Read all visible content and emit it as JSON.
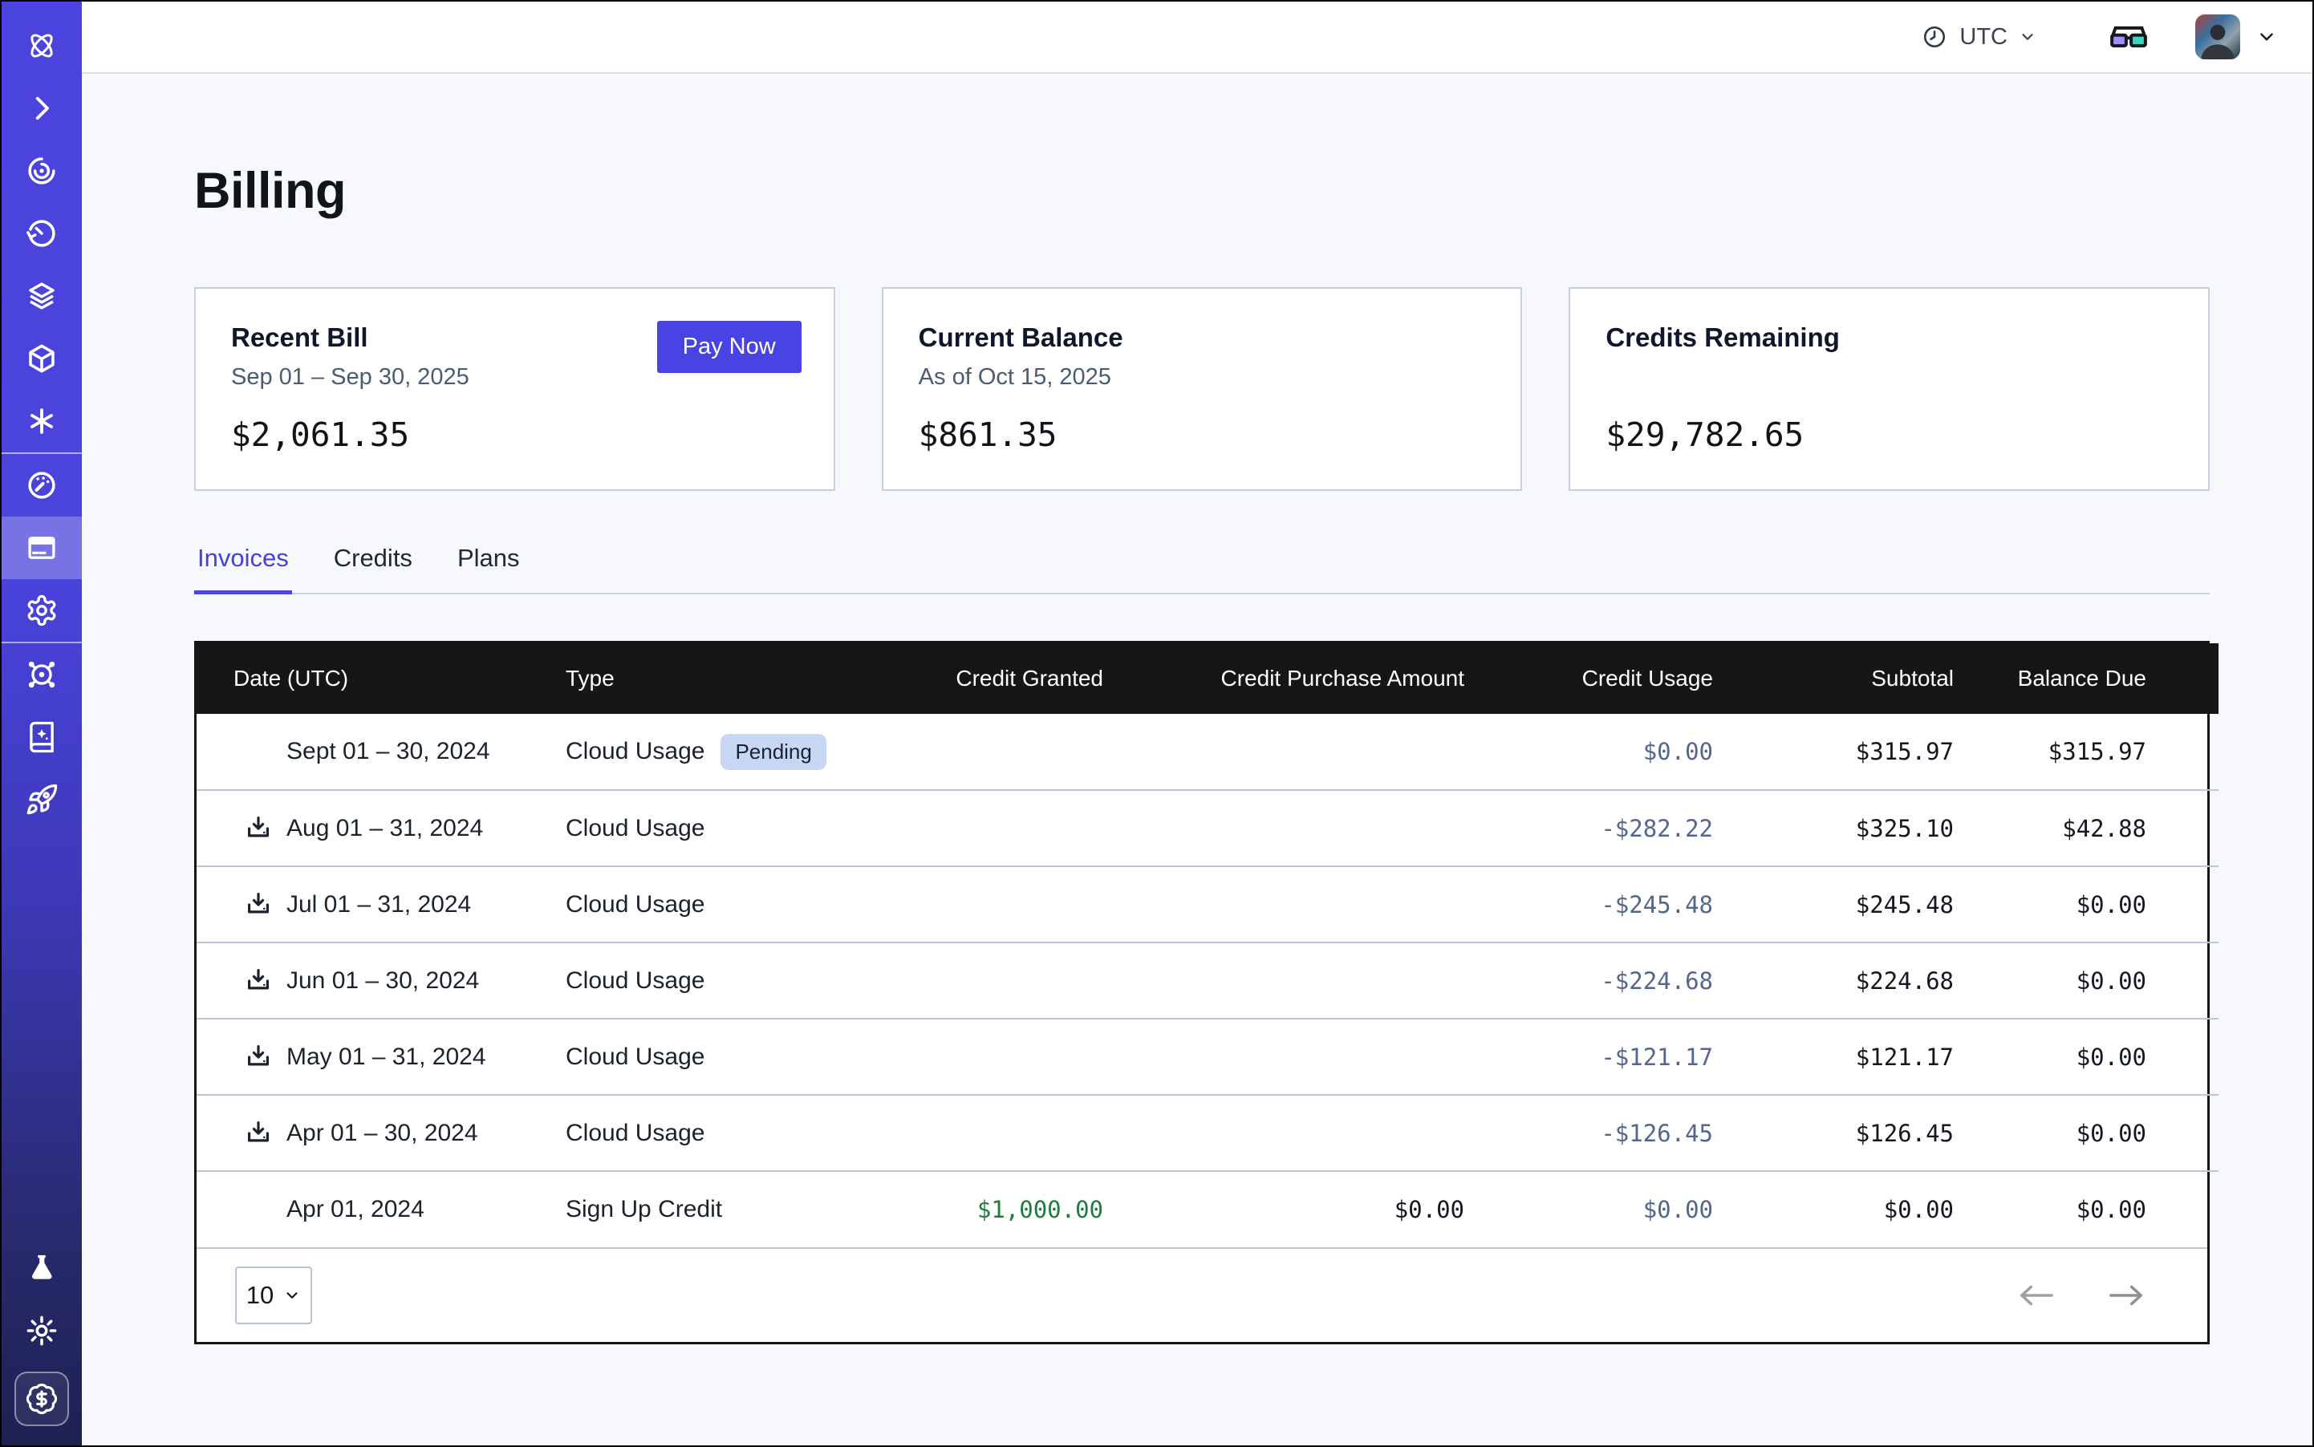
{
  "topbar": {
    "timezone": "UTC"
  },
  "page": {
    "title": "Billing"
  },
  "cards": {
    "recent_bill": {
      "title": "Recent Bill",
      "period": "Sep 01 – Sep 30, 2025",
      "amount": "$2,061.35",
      "pay_now_label": "Pay Now"
    },
    "current_balance": {
      "title": "Current Balance",
      "as_of": "As of Oct 15, 2025",
      "amount": "$861.35"
    },
    "credits_remaining": {
      "title": "Credits Remaining",
      "amount": "$29,782.65"
    }
  },
  "tabs": [
    {
      "label": "Invoices",
      "active": true
    },
    {
      "label": "Credits",
      "active": false
    },
    {
      "label": "Plans",
      "active": false
    }
  ],
  "table": {
    "columns": [
      "Date (UTC)",
      "Type",
      "Credit Granted",
      "Credit Purchase Amount",
      "Credit Usage",
      "Subtotal",
      "Balance Due"
    ],
    "rows": [
      {
        "date": "Sept 01 – 30, 2024",
        "download": false,
        "type": "Cloud Usage",
        "badge": "Pending",
        "credit_granted": "",
        "credit_purchase": "",
        "credit_usage": "$0.00",
        "subtotal": "$315.97",
        "balance_due": "$315.97"
      },
      {
        "date": "Aug 01 – 31, 2024",
        "download": true,
        "type": "Cloud Usage",
        "badge": "",
        "credit_granted": "",
        "credit_purchase": "",
        "credit_usage": "-$282.22",
        "subtotal": "$325.10",
        "balance_due": "$42.88"
      },
      {
        "date": "Jul 01 – 31, 2024",
        "download": true,
        "type": "Cloud Usage",
        "badge": "",
        "credit_granted": "",
        "credit_purchase": "",
        "credit_usage": "-$245.48",
        "subtotal": "$245.48",
        "balance_due": "$0.00"
      },
      {
        "date": "Jun 01 – 30, 2024",
        "download": true,
        "type": "Cloud Usage",
        "badge": "",
        "credit_granted": "",
        "credit_purchase": "",
        "credit_usage": "-$224.68",
        "subtotal": "$224.68",
        "balance_due": "$0.00"
      },
      {
        "date": "May 01 – 31, 2024",
        "download": true,
        "type": "Cloud Usage",
        "badge": "",
        "credit_granted": "",
        "credit_purchase": "",
        "credit_usage": "-$121.17",
        "subtotal": "$121.17",
        "balance_due": "$0.00"
      },
      {
        "date": "Apr 01 – 30, 2024",
        "download": true,
        "type": "Cloud Usage",
        "badge": "",
        "credit_granted": "",
        "credit_purchase": "",
        "credit_usage": "-$126.45",
        "subtotal": "$126.45",
        "balance_due": "$0.00"
      },
      {
        "date": "Apr 01, 2024",
        "download": false,
        "type": "Sign Up Credit",
        "badge": "",
        "credit_granted": "$1,000.00",
        "credit_purchase": "$0.00",
        "credit_usage": "$0.00",
        "subtotal": "$0.00",
        "balance_due": "$0.00"
      }
    ],
    "pagination": {
      "page_size": "10"
    }
  },
  "sidebar": {
    "icons": [
      "orbit-logo",
      "chevron-right",
      "spiral-eye",
      "timer",
      "layers",
      "cube",
      "asterisk",
      "gauge",
      "billing-card",
      "gear",
      "ship-wheel",
      "book-sparkle",
      "rocket",
      "flask",
      "sun",
      "dollar-badge"
    ],
    "active_item": "billing-card"
  },
  "colors": {
    "accent": "#4744e3",
    "sidebar_top": "#4b44de",
    "sidebar_bottom": "#1d2152",
    "table_header_bg": "#161616",
    "pending_badge_bg": "#c7d6f3",
    "credit_usage_text": "#54678b",
    "credit_granted_text": "#1e7d3c"
  }
}
